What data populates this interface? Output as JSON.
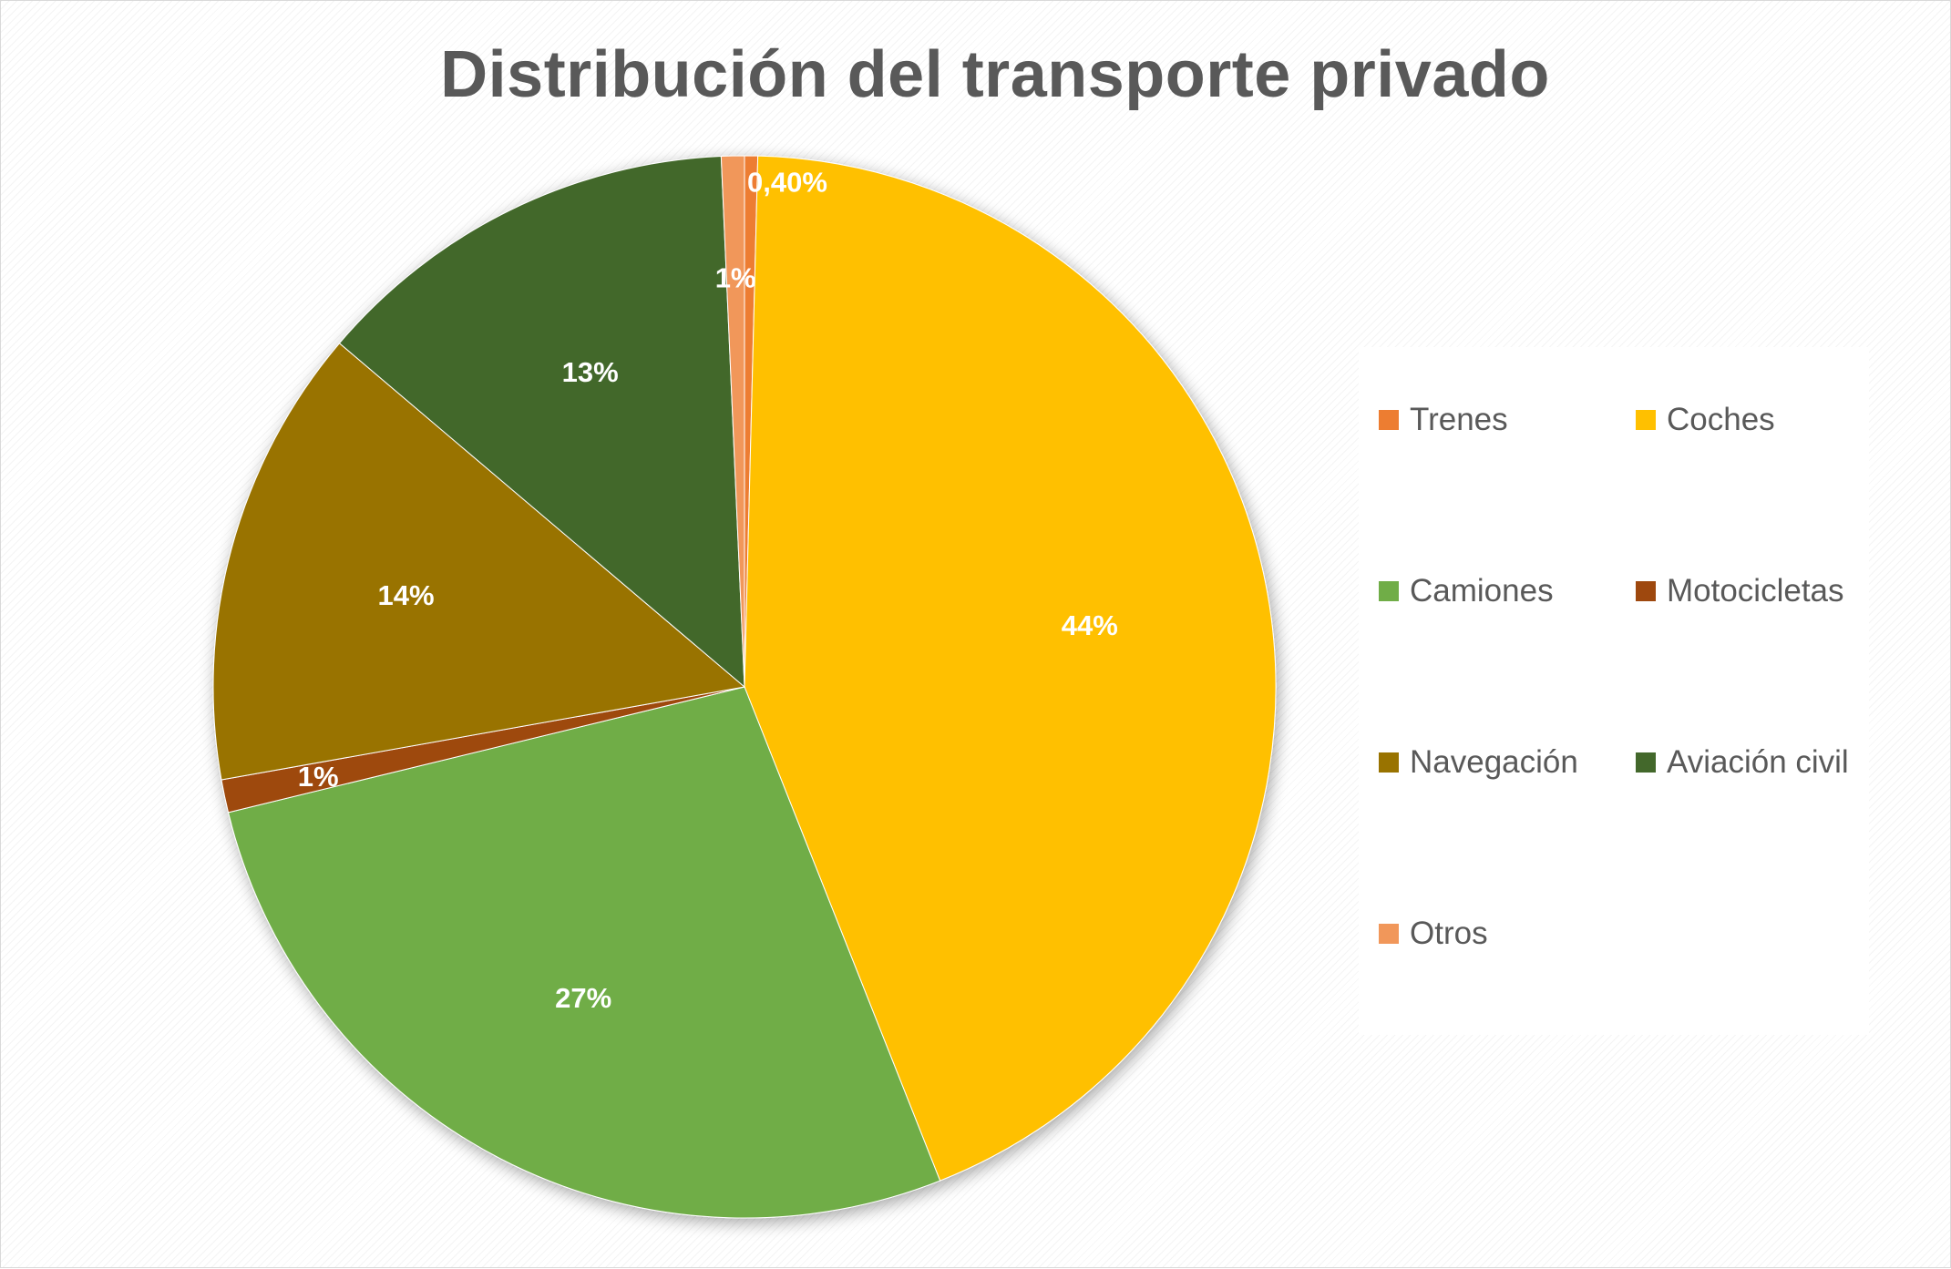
{
  "chart_data": {
    "type": "pie",
    "title": "Distribución del transporte privado",
    "legend_position": "right",
    "slices": [
      {
        "label": "Trenes",
        "value": 0.4,
        "data_label": "0,40%",
        "color": "#ED7D31"
      },
      {
        "label": "Coches",
        "value": 43.6,
        "data_label": "44%",
        "color": "#FFC000"
      },
      {
        "label": "Camiones",
        "value": 27.2,
        "data_label": "27%",
        "color": "#70AD47"
      },
      {
        "label": "Motocicletas",
        "value": 1.0,
        "data_label": "1%",
        "color": "#9E480E"
      },
      {
        "label": "Navegación",
        "value": 14.0,
        "data_label": "14%",
        "color": "#997300"
      },
      {
        "label": "Aviación civil",
        "value": 13.1,
        "data_label": "13%",
        "color": "#43682B"
      },
      {
        "label": "Otros",
        "value": 0.7,
        "data_label": "1%",
        "color": "#F1975A"
      }
    ]
  }
}
